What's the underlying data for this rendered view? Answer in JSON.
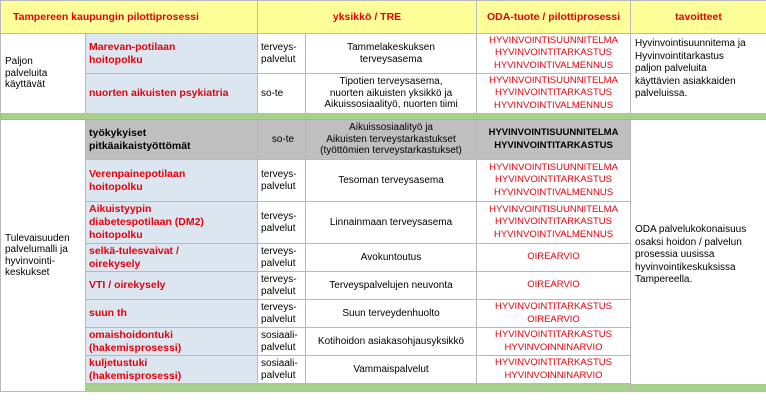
{
  "headers": {
    "c1": "Tampereen kaupungin pilottiprosessi",
    "c3": "yksikkö / TRE",
    "c4": "ODA-tuote / pilottiprosessi",
    "c5": "tavoitteet"
  },
  "groups": {
    "g1": [
      "Paljon",
      "palveluita",
      "käyttävät"
    ],
    "g2": [
      "Tulevaisuuden",
      "palvelumalli ja",
      "hyvinvointi-",
      "keskukset"
    ]
  },
  "goals": {
    "g1": [
      "Hyvinvointisuunnitema ja",
      "Hyvinvointitarkastus",
      "paljon palveluita",
      "käyttävien asiakkaiden",
      "palveluissa."
    ],
    "g2": [
      "ODA palvelukokonaisuus",
      "osaksi hoidon / palvelun",
      "prosessia uusissa",
      "hyvinvointikeskuksissa",
      "Tampereella."
    ]
  },
  "rows": [
    {
      "path": [
        "Marevan-potilaan",
        "hoitopolku"
      ],
      "unit": [
        "terveys-",
        "palvelut"
      ],
      "loc": [
        "Tammelakeskuksen",
        "terveysasema"
      ],
      "oda": [
        "HYVINVOINTISUUNNITELMA",
        "HYVINVOINTITARKASTUS",
        "HYVINVOINTIVALMENNUS"
      ]
    },
    {
      "path": [
        "nuorten aikuisten psykiatria"
      ],
      "unit": [
        "so-te"
      ],
      "loc": [
        "Tipotien terveysasema,",
        "nuorten aikuisten yksikkö ja",
        "Aikuissosiaalityö, nuorten tiimi"
      ],
      "oda": [
        "HYVINVOINTISUUNNITELMA",
        "HYVINVOINTITARKASTUS",
        "HYVINVOINTIVALMENNUS"
      ]
    },
    {
      "path": [
        "työkykyiset",
        "pitkäaikaistyöttömät"
      ],
      "unit": [
        "so-te"
      ],
      "loc": [
        "Aikuissosiaalityö ja",
        "Aikuisten terveystarkastukset",
        "(työttömien terveystarkastukset)"
      ],
      "oda": [
        "HYVINVOINTISUUNNITELMA",
        "HYVINVOINTITARKASTUS"
      ]
    },
    {
      "path": [
        "Verenpainepotilaan",
        "hoitopolku"
      ],
      "unit": [
        "terveys-",
        "palvelut"
      ],
      "loc": [
        "Tesoman terveysasema"
      ],
      "oda": [
        "HYVINVOINTISUUNNITELMA",
        "HYVINVOINTITARKASTUS",
        "HYVINVOINTIVALMENNUS"
      ]
    },
    {
      "path": [
        "Aikuistyypin",
        "diabetespotilaan (DM2)",
        "hoitopolku"
      ],
      "unit": [
        "terveys-",
        "palvelut"
      ],
      "loc": [
        "Linnainmaan terveysasema"
      ],
      "oda": [
        "HYVINVOINTISUUNNITELMA",
        "HYVINVOINTITARKASTUS",
        "HYVINVOINTIVALMENNUS"
      ]
    },
    {
      "path": [
        "selkä-tulesvaivat /",
        "oirekysely"
      ],
      "unit": [
        "terveys-",
        "palvelut"
      ],
      "loc": [
        "Avokuntoutus"
      ],
      "oda": [
        "OIREARVIO"
      ]
    },
    {
      "path": [
        "VTI / oirekysely"
      ],
      "unit": [
        "terveys-",
        "palvelut"
      ],
      "loc": [
        "Terveyspalvelujen neuvonta"
      ],
      "oda": [
        "OIREARVIO"
      ]
    },
    {
      "path": [
        "suun th"
      ],
      "unit": [
        "terveys-",
        "palvelut"
      ],
      "loc": [
        "Suun terveydenhuolto"
      ],
      "oda": [
        "HYVINVOINTITARKASTUS",
        "OIREARVIO"
      ]
    },
    {
      "path": [
        "omaishoidontuki",
        "(hakemisprosessi)"
      ],
      "unit": [
        "sosiaali-",
        "palvelut"
      ],
      "loc": [
        "Kotihoidon asiakasohjausyksikkö"
      ],
      "oda": [
        "HYVINVOINTITARKASTUS",
        "HYVINVOINNINARVIO"
      ]
    },
    {
      "path": [
        "kuljetustuki",
        "(hakemisprosessi)"
      ],
      "unit": [
        "sosiaali-",
        "palvelut"
      ],
      "loc": [
        "Vammaispalvelut"
      ],
      "oda": [
        "HYVINVOINTITARKASTUS",
        "HYVINVOINNINARVIO"
      ]
    }
  ]
}
